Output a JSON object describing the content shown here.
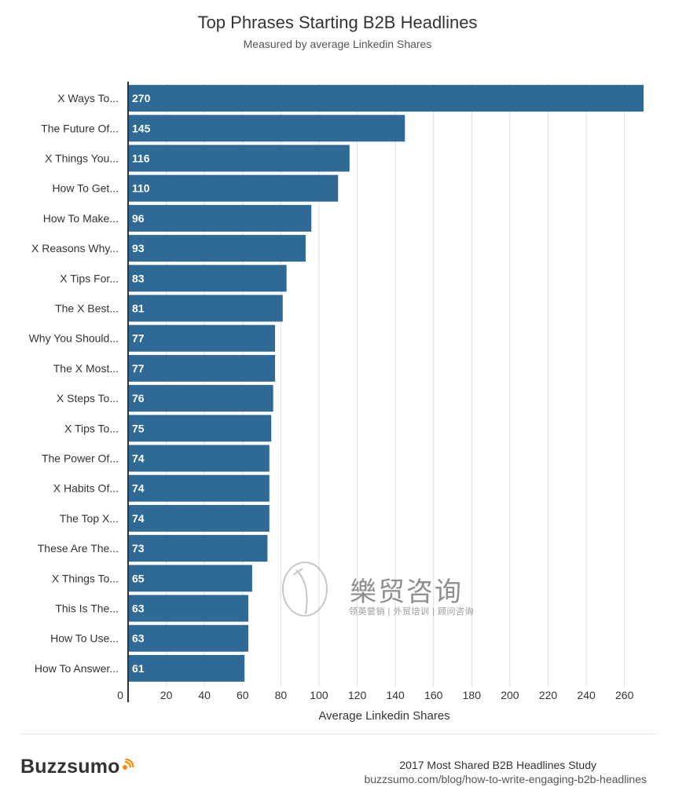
{
  "title": "Top Phrases Starting B2B Headlines",
  "subtitle": "Measured by average Linkedin Shares",
  "chart_data": {
    "type": "bar",
    "orientation": "horizontal",
    "title": "Top Phrases Starting B2B Headlines",
    "subtitle": "Measured by average Linkedin Shares",
    "xlabel": "Average Linkedin Shares",
    "ylabel": "",
    "xlim": [
      0,
      270
    ],
    "x_ticks": [
      0,
      20,
      40,
      60,
      80,
      100,
      120,
      140,
      160,
      180,
      200,
      220,
      240,
      260
    ],
    "grid": true,
    "bar_color": "#2f6a96",
    "categories": [
      "X Ways To...",
      "The Future Of...",
      "X Things You...",
      "How To Get...",
      "How To Make...",
      "X Reasons Why...",
      "X Tips For...",
      "The X Best...",
      "Why You Should...",
      "The X Most...",
      "X Steps To...",
      "X Tips To...",
      "The Power Of...",
      "X Habits Of...",
      "The Top X...",
      "These Are The...",
      "X Things To...",
      "This Is The...",
      "How To Use...",
      "How To Answer..."
    ],
    "values": [
      270,
      145,
      116,
      110,
      96,
      93,
      83,
      81,
      77,
      77,
      76,
      75,
      74,
      74,
      74,
      73,
      65,
      63,
      63,
      61
    ]
  },
  "footer": {
    "brand": "Buzzsumo",
    "study_title": "2017 Most Shared B2B Headlines Study",
    "study_url": "buzzsumo.com/blog/how-to-write-engaging-b2b-headlines"
  },
  "watermark": {
    "title": "樂贸咨询",
    "subtitle": "领英营销 | 外贸培训 | 顾问咨询"
  },
  "colors": {
    "bar": "#2f6a96",
    "grid": "#dddddd",
    "axis": "#333333"
  }
}
